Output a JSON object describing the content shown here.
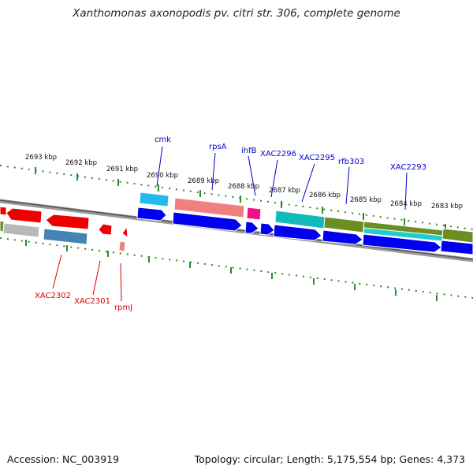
{
  "title": "Xanthomonas axonopodis pv. citri str. 306, complete genome",
  "footer": {
    "accession": "Accession: NC_003919",
    "summary": "Topology: circular; Length: 5,175,554 bp; Genes: 4,373"
  },
  "colors": {
    "ruler": "#2a8a2a",
    "backbone": "#888888",
    "forward_label": "#0000cc",
    "reverse_label": "#dd0000",
    "cds_forward": "#0000ee",
    "cds_reverse": "#ee0000"
  },
  "kbp_labels": [
    "2693 kbp",
    "2692 kbp",
    "2691 kbp",
    "2690 kbp",
    "2689 kbp",
    "2688 kbp",
    "2687 kbp",
    "2686 kbp",
    "2685 kbp",
    "2684 kbp",
    "2683 kbp"
  ],
  "forward_gene_labels": [
    "cmk",
    "rpsA",
    "ihfB",
    "XAC2296",
    "XAC2295",
    "rfb303",
    "XAC2293"
  ],
  "reverse_gene_labels": [
    "XAC2302",
    "XAC2301",
    "rpmJ"
  ]
}
